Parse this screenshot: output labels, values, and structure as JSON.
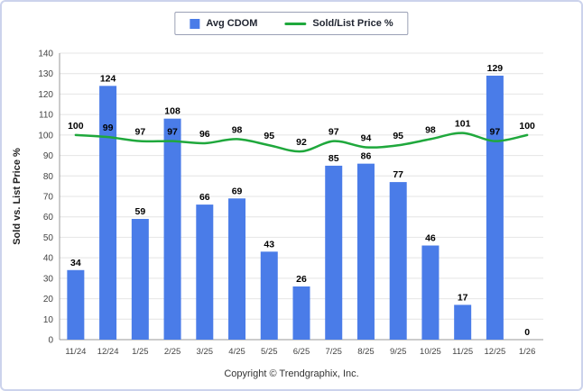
{
  "frame": {
    "background": "#ffffff",
    "border_color": "#ccd3ec"
  },
  "legend": {
    "items": [
      {
        "label": "Avg CDOM",
        "type": "bar",
        "color": "#4a7ce8"
      },
      {
        "label": "Sold/List Price %",
        "type": "line",
        "color": "#1fa83c"
      }
    ]
  },
  "chart_data": {
    "type": "bar",
    "subtype": "bar+line combo",
    "categories": [
      "11/24",
      "12/24",
      "1/25",
      "2/25",
      "3/25",
      "4/25",
      "5/25",
      "6/25",
      "7/25",
      "8/25",
      "9/25",
      "10/25",
      "11/25",
      "12/25",
      "1/26"
    ],
    "series": [
      {
        "name": "Avg CDOM",
        "type": "bar",
        "color": "#4a7ce8",
        "values": [
          34,
          124,
          59,
          108,
          66,
          69,
          43,
          26,
          85,
          86,
          77,
          46,
          17,
          129,
          0
        ]
      },
      {
        "name": "Sold/List Price %",
        "type": "line",
        "color": "#1fa83c",
        "values": [
          100,
          99,
          97,
          97,
          96,
          98,
          95,
          92,
          97,
          94,
          95,
          98,
          101,
          97,
          100
        ]
      }
    ],
    "title": "",
    "xlabel": "",
    "ylabel": "Sold vs. List Price %",
    "ylim": [
      0,
      140
    ],
    "ytick_step": 10,
    "grid": true,
    "legend_position": "top",
    "data_labels": true
  },
  "footer": {
    "text": "Copyright © Trendgraphix, Inc."
  }
}
